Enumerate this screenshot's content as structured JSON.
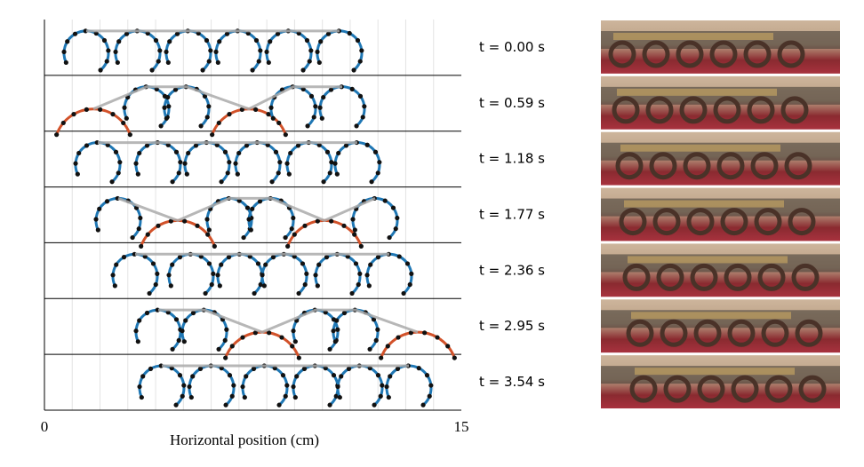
{
  "figure": {
    "xlabel": "Horizontal position (cm)",
    "xlim": [
      0,
      15
    ],
    "xticks": [
      0,
      15
    ],
    "panels": [
      "t = 0.00 s",
      "t = 0.59 s",
      "t = 1.18 s",
      "t = 1.77 s",
      "t = 2.36 s",
      "t = 2.95 s",
      "t = 3.54 s"
    ]
  }
}
